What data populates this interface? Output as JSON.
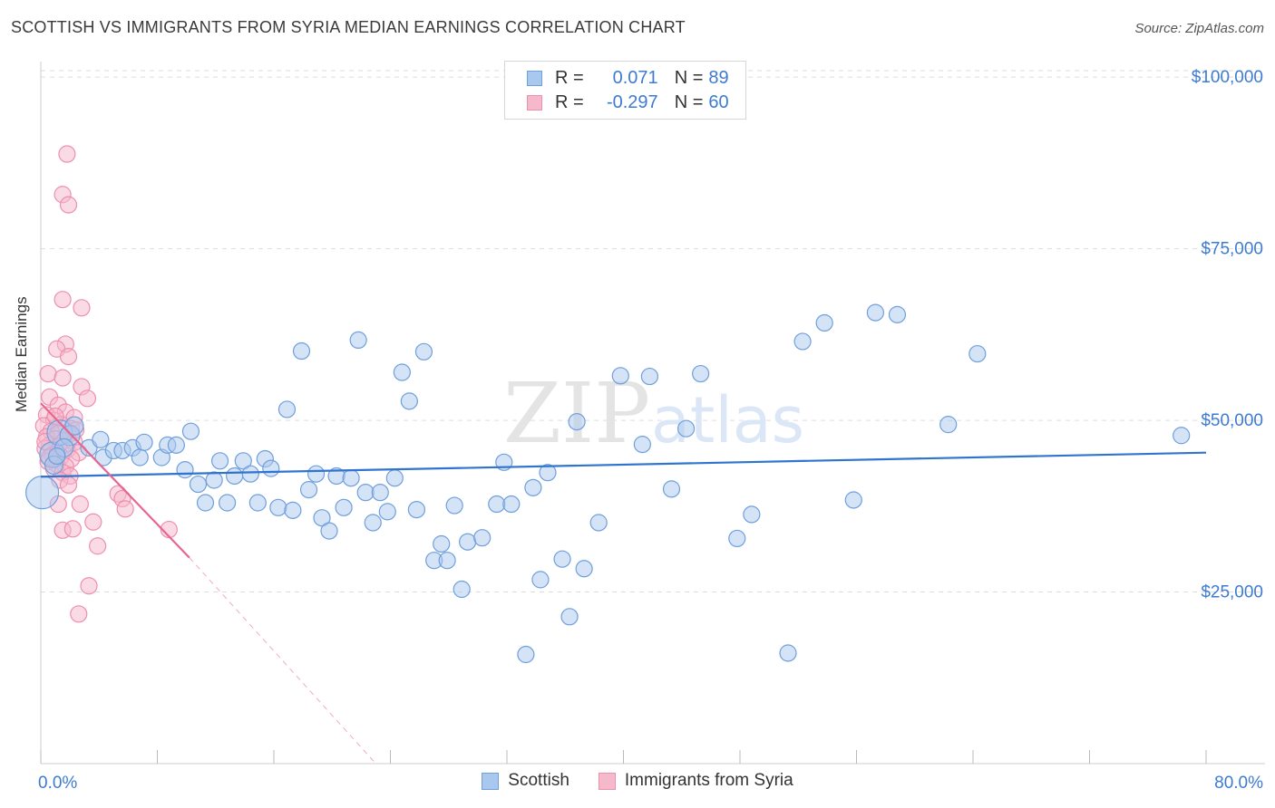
{
  "title": "SCOTTISH VS IMMIGRANTS FROM SYRIA MEDIAN EARNINGS CORRELATION CHART",
  "source": "Source: ZipAtlas.com",
  "watermark": {
    "zip": "ZIP",
    "atlas": "atlas"
  },
  "colors": {
    "blue_fill": "#a9c8ee",
    "blue_stroke": "#6f9fdc",
    "blue_line": "#2f74cf",
    "pink_fill": "#f6b8cb",
    "pink_stroke": "#ee8fac",
    "pink_line": "#e8658f",
    "grid": "#dddddd",
    "axis_text": "#3d7bd1"
  },
  "legend": {
    "rows": [
      {
        "r_label": "R =",
        "r_value": "0.071",
        "n_label": "N =",
        "n_value": "89",
        "series": "blue"
      },
      {
        "r_label": "R =",
        "r_value": "-0.297",
        "n_label": "N =",
        "n_value": "60",
        "series": "pink"
      }
    ],
    "bottom": [
      "Scottish",
      "Immigrants from Syria"
    ]
  },
  "chart_data": {
    "type": "scatter",
    "title": "SCOTTISH VS IMMIGRANTS FROM SYRIA MEDIAN EARNINGS CORRELATION CHART",
    "xlabel": "",
    "ylabel": "Median Earnings",
    "xlim": [
      0,
      80
    ],
    "ylim": [
      0,
      102000
    ],
    "x_tick_labels": [
      "0.0%",
      "80.0%"
    ],
    "y_ticks": [
      25000,
      50000,
      75000,
      100000
    ],
    "y_tick_labels": [
      "$25,000",
      "$50,000",
      "$75,000",
      "$100,000"
    ],
    "grid": true,
    "series": [
      {
        "name": "Scottish",
        "color": "blue",
        "trend": {
          "x": [
            0,
            80
          ],
          "y": [
            41800,
            45300
          ]
        },
        "points": [
          [
            0.1,
            39500,
            18
          ],
          [
            0.8,
            45000,
            14
          ],
          [
            1.3,
            48200,
            14
          ],
          [
            2.0,
            47800,
            11
          ],
          [
            1.6,
            46000,
            10
          ],
          [
            0.9,
            43500,
            10
          ],
          [
            2.3,
            49200,
            10
          ],
          [
            3.3,
            46000,
            9
          ],
          [
            4.1,
            47200,
            9
          ],
          [
            4.3,
            44600,
            9
          ],
          [
            5.0,
            45600,
            9
          ],
          [
            5.6,
            45600,
            9
          ],
          [
            6.3,
            46000,
            9
          ],
          [
            6.8,
            44600,
            9
          ],
          [
            7.1,
            46800,
            9
          ],
          [
            8.3,
            44600,
            9
          ],
          [
            8.7,
            46400,
            9
          ],
          [
            9.3,
            46400,
            9
          ],
          [
            9.9,
            42800,
            9
          ],
          [
            10.3,
            48400,
            9
          ],
          [
            10.8,
            40700,
            9
          ],
          [
            11.3,
            38000,
            9
          ],
          [
            11.9,
            41300,
            9
          ],
          [
            12.3,
            44100,
            9
          ],
          [
            12.8,
            38000,
            9
          ],
          [
            13.3,
            41900,
            9
          ],
          [
            13.9,
            44100,
            9
          ],
          [
            14.4,
            42200,
            9
          ],
          [
            14.9,
            38000,
            9
          ],
          [
            15.4,
            44400,
            9
          ],
          [
            15.8,
            43000,
            9
          ],
          [
            16.3,
            37300,
            9
          ],
          [
            16.9,
            51600,
            9
          ],
          [
            17.3,
            36900,
            9
          ],
          [
            17.9,
            60100,
            9
          ],
          [
            18.4,
            39900,
            9
          ],
          [
            18.9,
            42200,
            9
          ],
          [
            19.3,
            35800,
            9
          ],
          [
            19.8,
            33900,
            9
          ],
          [
            20.3,
            41900,
            9
          ],
          [
            20.8,
            37300,
            9
          ],
          [
            21.3,
            41600,
            9
          ],
          [
            21.8,
            61700,
            9
          ],
          [
            22.3,
            39500,
            9
          ],
          [
            22.8,
            35100,
            9
          ],
          [
            23.3,
            39500,
            9
          ],
          [
            23.8,
            36700,
            9
          ],
          [
            24.3,
            41600,
            9
          ],
          [
            24.8,
            57000,
            9
          ],
          [
            25.3,
            52800,
            9
          ],
          [
            25.8,
            37000,
            9
          ],
          [
            26.3,
            60000,
            9
          ],
          [
            27.0,
            29600,
            9
          ],
          [
            27.5,
            32000,
            9
          ],
          [
            27.9,
            29600,
            9
          ],
          [
            28.4,
            37600,
            9
          ],
          [
            28.9,
            25400,
            9
          ],
          [
            29.3,
            32300,
            9
          ],
          [
            30.3,
            32900,
            9
          ],
          [
            31.3,
            37800,
            9
          ],
          [
            31.8,
            43900,
            9
          ],
          [
            32.3,
            37800,
            9
          ],
          [
            33.3,
            15900,
            9
          ],
          [
            33.8,
            40200,
            9
          ],
          [
            34.3,
            26800,
            9
          ],
          [
            34.8,
            42400,
            9
          ],
          [
            35.8,
            29800,
            9
          ],
          [
            36.3,
            21400,
            9
          ],
          [
            36.8,
            49800,
            9
          ],
          [
            37.3,
            28400,
            9
          ],
          [
            38.3,
            35100,
            9
          ],
          [
            39.8,
            56500,
            9
          ],
          [
            41.3,
            46500,
            9
          ],
          [
            41.8,
            56400,
            9
          ],
          [
            43.3,
            40000,
            9
          ],
          [
            44.3,
            48800,
            9
          ],
          [
            45.3,
            56800,
            9
          ],
          [
            47.8,
            32800,
            9
          ],
          [
            48.8,
            36300,
            9
          ],
          [
            51.3,
            16100,
            9
          ],
          [
            52.3,
            61500,
            9
          ],
          [
            53.8,
            64200,
            9
          ],
          [
            55.8,
            38400,
            9
          ],
          [
            57.3,
            65700,
            9
          ],
          [
            58.8,
            65400,
            9
          ],
          [
            62.3,
            49400,
            9
          ],
          [
            64.3,
            59700,
            9
          ],
          [
            78.3,
            47800,
            9
          ],
          [
            1.1,
            44800,
            9
          ]
        ]
      },
      {
        "name": "Immigrants from Syria",
        "color": "pink",
        "trend": {
          "x": [
            0,
            10.2
          ],
          "y": [
            52500,
            30000
          ]
        },
        "trend_extension": {
          "x": [
            10.2,
            23.0
          ],
          "y": [
            30000,
            0
          ]
        },
        "points": [
          [
            1.8,
            88800,
            9
          ],
          [
            1.5,
            82900,
            9
          ],
          [
            1.9,
            81400,
            9
          ],
          [
            1.5,
            67600,
            9
          ],
          [
            2.8,
            66400,
            9
          ],
          [
            1.7,
            61100,
            9
          ],
          [
            1.1,
            60400,
            9
          ],
          [
            1.9,
            59300,
            9
          ],
          [
            0.5,
            56800,
            9
          ],
          [
            1.5,
            56200,
            9
          ],
          [
            2.8,
            54900,
            9
          ],
          [
            3.2,
            53200,
            9
          ],
          [
            0.6,
            53400,
            9
          ],
          [
            1.2,
            52200,
            9
          ],
          [
            1.7,
            51200,
            9
          ],
          [
            0.4,
            50800,
            9
          ],
          [
            2.3,
            50400,
            9
          ],
          [
            0.9,
            50000,
            9
          ],
          [
            1.4,
            49400,
            9
          ],
          [
            0.2,
            49200,
            9
          ],
          [
            2.1,
            48800,
            9
          ],
          [
            0.7,
            48400,
            9
          ],
          [
            1.2,
            48100,
            9
          ],
          [
            1.9,
            47900,
            9
          ],
          [
            0.4,
            47600,
            9
          ],
          [
            1.0,
            47300,
            9
          ],
          [
            1.6,
            47000,
            9
          ],
          [
            2.3,
            46800,
            9
          ],
          [
            0.6,
            46400,
            9
          ],
          [
            1.2,
            46200,
            9
          ],
          [
            0.3,
            45900,
            9
          ],
          [
            1.8,
            45700,
            9
          ],
          [
            2.6,
            45300,
            9
          ],
          [
            0.8,
            45000,
            9
          ],
          [
            1.4,
            44700,
            9
          ],
          [
            2.1,
            44400,
            9
          ],
          [
            0.5,
            44000,
            9
          ],
          [
            1.1,
            43600,
            9
          ],
          [
            1.7,
            43300,
            9
          ],
          [
            0.9,
            42900,
            9
          ],
          [
            1.5,
            42400,
            9
          ],
          [
            2.0,
            41900,
            9
          ],
          [
            1.3,
            41300,
            9
          ],
          [
            1.9,
            40600,
            9
          ],
          [
            5.3,
            39300,
            9
          ],
          [
            5.6,
            38600,
            9
          ],
          [
            1.2,
            37800,
            9
          ],
          [
            2.7,
            37800,
            9
          ],
          [
            5.8,
            37100,
            9
          ],
          [
            3.6,
            35200,
            9
          ],
          [
            1.5,
            34000,
            9
          ],
          [
            2.2,
            34200,
            9
          ],
          [
            8.8,
            34100,
            9
          ],
          [
            3.9,
            31700,
            9
          ],
          [
            3.3,
            25900,
            9
          ],
          [
            2.6,
            21800,
            9
          ],
          [
            0.3,
            46900,
            9
          ],
          [
            1.0,
            50600,
            9
          ],
          [
            2.4,
            48600,
            9
          ],
          [
            0.6,
            44600,
            9
          ]
        ]
      }
    ]
  }
}
